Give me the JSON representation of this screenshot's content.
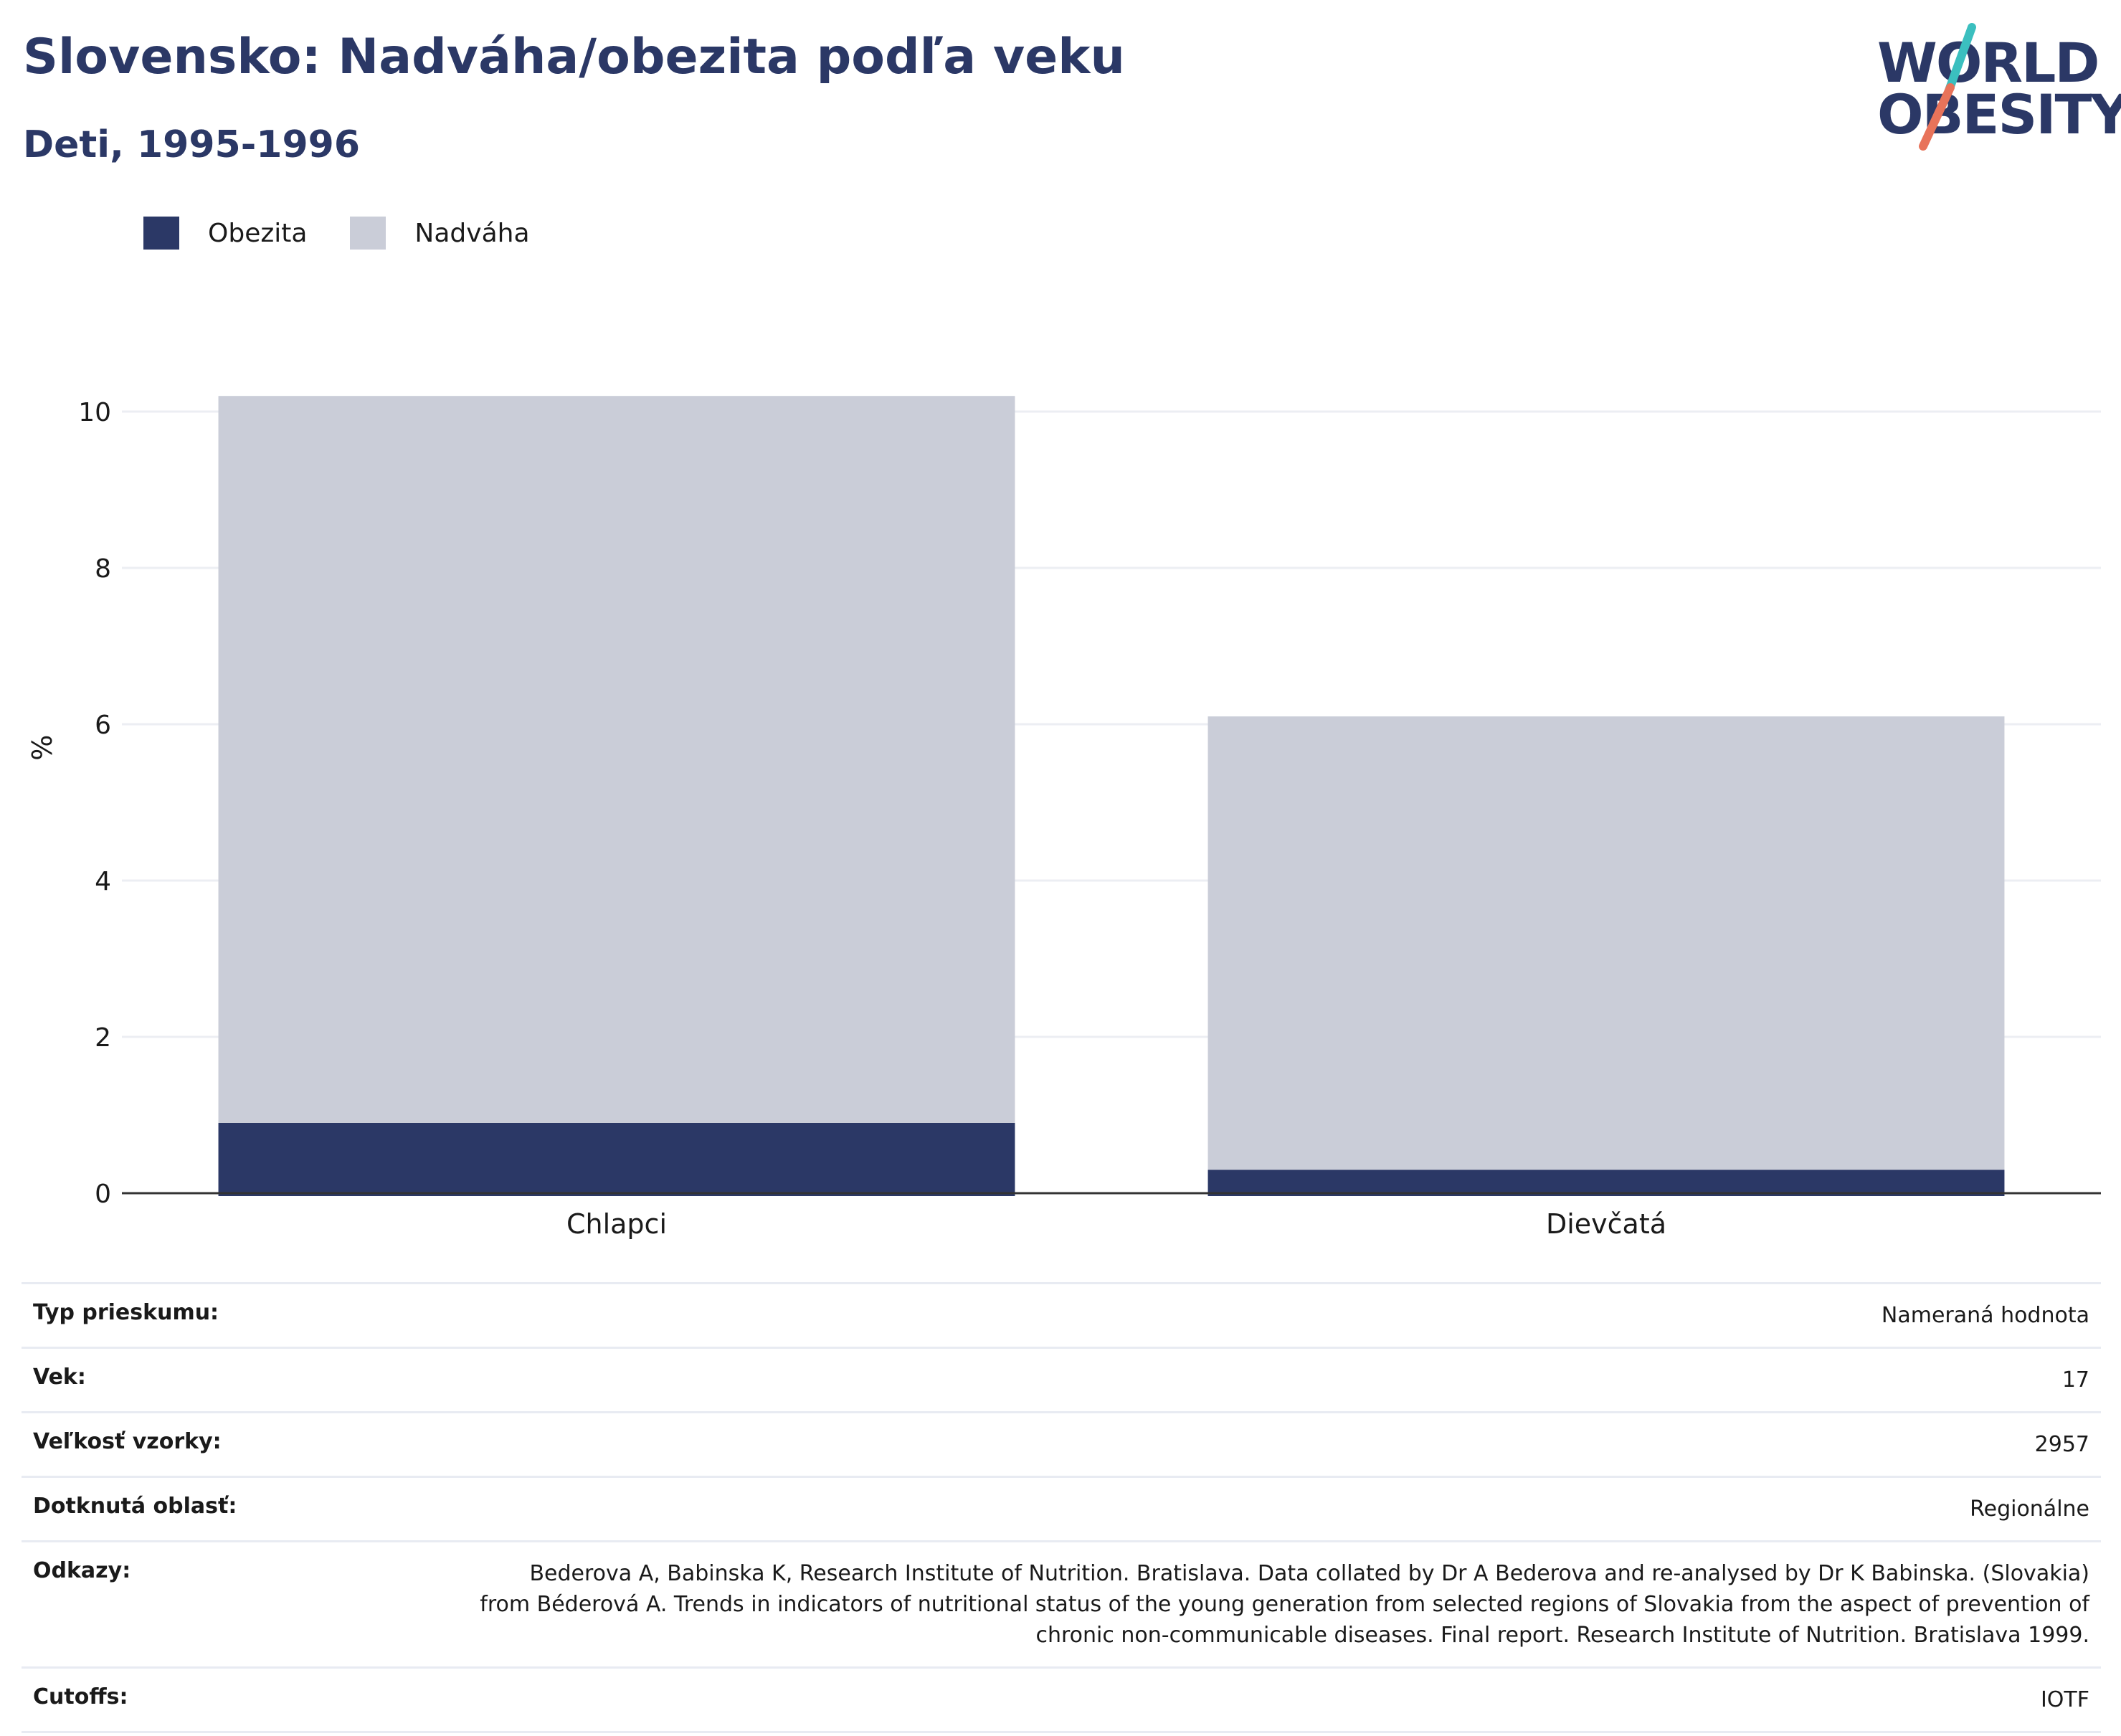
{
  "header": {
    "title": "Slovensko: Nadváha/obezita podľa veku",
    "subtitle": "Deti, 1995-1996"
  },
  "logo": {
    "line1": "WORLD",
    "line2": "OBESITY",
    "colors": {
      "text": "#2b3866",
      "teal": "#3bbfbf",
      "coral": "#e8735a"
    }
  },
  "legend": [
    {
      "label": "Obezita",
      "color": "#2b3866"
    },
    {
      "label": "Nadváha",
      "color": "#cacdd8"
    }
  ],
  "chart_data": {
    "type": "bar",
    "stacked": true,
    "categories": [
      "Chlapci",
      "Dievčatá"
    ],
    "series": [
      {
        "name": "Obezita",
        "values": [
          0.9,
          0.3
        ],
        "color": "#2b3866"
      },
      {
        "name": "Nadváha",
        "values": [
          9.3,
          5.8
        ],
        "color": "#cacdd8"
      }
    ],
    "ylabel": "%",
    "ylim": [
      0,
      10.2
    ],
    "yticks": [
      0,
      2,
      4,
      6,
      8,
      10
    ],
    "grid": true,
    "legend_position": "top-left"
  },
  "metadata": [
    {
      "key": "Typ prieskumu:",
      "value": "Nameraná hodnota"
    },
    {
      "key": "Vek:",
      "value": "17"
    },
    {
      "key": "Veľkosť vzorky:",
      "value": "2957"
    },
    {
      "key": "Dotknutá oblasť:",
      "value": "Regionálne"
    },
    {
      "key": "Odkazy:",
      "value": "Bederova A, Babinska K, Research Institute of Nutrition. Bratislava. Data collated by Dr A Bederova and re-analysed by Dr K Babinska. (Slovakia) from Béderová A. Trends in indicators of nutritional status of the young generation from selected regions of Slovakia from the aspect of prevention of chronic non-communicable diseases. Final report. Research Institute of Nutrition. Bratislava 1999."
    },
    {
      "key": "Cutoffs:",
      "value": "IOTF"
    }
  ]
}
